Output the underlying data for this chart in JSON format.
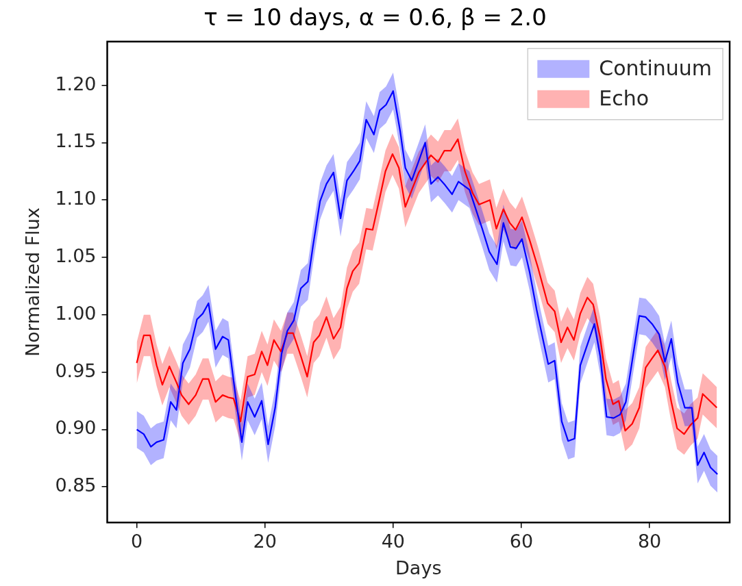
{
  "chart_data": {
    "type": "line",
    "title": "τ = 10 days, α = 0.6, β = 2.0",
    "xlabel": "Days",
    "ylabel": "Normalized Flux",
    "xlim": [
      -4.6,
      92.5
    ],
    "xticks": [
      0,
      20,
      40,
      60,
      80
    ],
    "ylim": [
      0.819,
      1.238
    ],
    "yticks": [
      0.85,
      {
        "value": 0.9,
        "label": "0.90"
      },
      0.95,
      {
        "value": 1.0,
        "label": "1.00"
      },
      1.05,
      {
        "value": 1.1,
        "label": "1.10"
      },
      1.15,
      {
        "value": 1.2,
        "label": "1.20"
      }
    ],
    "grid": false,
    "legend": "top right",
    "marker": "none",
    "line_style": "solid",
    "series": [
      {
        "name": "Continuum",
        "color": "#0000ff",
        "x": [
          0,
          1.1,
          2.2,
          3.1,
          4.2,
          5.3,
          6.2,
          7.2,
          8.3,
          9.4,
          10.3,
          11.2,
          12.3,
          13.4,
          14.3,
          15.4,
          16.4,
          17.3,
          18.4,
          19.5,
          20.5,
          21.6,
          22.6,
          23.5,
          24.5,
          25.6,
          26.7,
          27.5,
          28.6,
          29.6,
          30.7,
          31.8,
          32.8,
          33.8,
          34.8,
          35.8,
          37.0,
          37.9,
          38.9,
          40.0,
          41.1,
          41.9,
          42.9,
          44.0,
          45.0,
          45.9,
          47.0,
          48.1,
          49.2,
          50.2,
          51.9,
          53.9,
          55.0,
          56.2,
          57.2,
          58.3,
          59.2,
          60.1,
          61.3,
          62.4,
          64.2,
          65.2,
          66.3,
          67.3,
          68.3,
          69.2,
          70.3,
          71.4,
          72.3,
          73.3,
          74.4,
          75.4,
          76.3,
          77.3,
          78.4,
          79.4,
          80.4,
          81.5,
          82.4,
          83.4,
          84.4,
          85.5,
          86.6,
          87.5,
          88.5,
          89.5,
          90.6
        ],
        "values": [
          0.9,
          0.896,
          0.885,
          0.889,
          0.891,
          0.924,
          0.917,
          0.958,
          0.97,
          0.996,
          1.001,
          1.01,
          0.97,
          0.981,
          0.978,
          0.93,
          0.889,
          0.924,
          0.911,
          0.925,
          0.887,
          0.919,
          0.966,
          0.986,
          0.995,
          1.023,
          1.029,
          1.06,
          1.099,
          1.114,
          1.124,
          1.084,
          1.117,
          1.125,
          1.134,
          1.17,
          1.157,
          1.178,
          1.183,
          1.195,
          1.16,
          1.128,
          1.117,
          1.134,
          1.15,
          1.114,
          1.12,
          1.113,
          1.105,
          1.116,
          1.109,
          1.075,
          1.055,
          1.044,
          1.08,
          1.059,
          1.058,
          1.066,
          1.037,
          1.004,
          0.957,
          0.96,
          0.907,
          0.89,
          0.892,
          0.956,
          0.974,
          0.992,
          0.964,
          0.911,
          0.91,
          0.913,
          0.924,
          0.96,
          0.999,
          0.998,
          0.992,
          0.983,
          0.959,
          0.979,
          0.941,
          0.919,
          0.919,
          0.869,
          0.88,
          0.867,
          0.861
        ],
        "lower": [
          0.884,
          0.88,
          0.869,
          0.873,
          0.875,
          0.908,
          0.901,
          0.942,
          0.954,
          0.98,
          0.985,
          0.994,
          0.954,
          0.965,
          0.962,
          0.914,
          0.873,
          0.908,
          0.895,
          0.909,
          0.871,
          0.903,
          0.95,
          0.97,
          0.979,
          1.007,
          1.013,
          1.044,
          1.083,
          1.098,
          1.108,
          1.068,
          1.101,
          1.109,
          1.118,
          1.154,
          1.141,
          1.162,
          1.167,
          1.179,
          1.144,
          1.112,
          1.101,
          1.118,
          1.134,
          1.098,
          1.104,
          1.097,
          1.089,
          1.1,
          1.093,
          1.059,
          1.039,
          1.028,
          1.064,
          1.043,
          1.042,
          1.05,
          1.021,
          0.988,
          0.941,
          0.944,
          0.891,
          0.874,
          0.876,
          0.94,
          0.958,
          0.976,
          0.948,
          0.895,
          0.894,
          0.897,
          0.908,
          0.944,
          0.983,
          0.982,
          0.976,
          0.967,
          0.943,
          0.963,
          0.925,
          0.903,
          0.903,
          0.853,
          0.864,
          0.851,
          0.845
        ],
        "upper": [
          0.916,
          0.912,
          0.901,
          0.905,
          0.907,
          0.94,
          0.933,
          0.974,
          0.986,
          1.012,
          1.017,
          1.026,
          0.986,
          0.997,
          0.994,
          0.946,
          0.905,
          0.94,
          0.927,
          0.941,
          0.903,
          0.935,
          0.982,
          1.002,
          1.011,
          1.039,
          1.045,
          1.076,
          1.115,
          1.13,
          1.14,
          1.1,
          1.133,
          1.141,
          1.15,
          1.186,
          1.173,
          1.194,
          1.199,
          1.211,
          1.176,
          1.144,
          1.133,
          1.15,
          1.166,
          1.13,
          1.136,
          1.129,
          1.121,
          1.132,
          1.125,
          1.091,
          1.071,
          1.06,
          1.096,
          1.075,
          1.074,
          1.082,
          1.053,
          1.02,
          0.973,
          0.976,
          0.923,
          0.906,
          0.908,
          0.972,
          0.99,
          1.008,
          0.98,
          0.927,
          0.926,
          0.929,
          0.94,
          0.976,
          1.015,
          1.014,
          1.008,
          0.999,
          0.975,
          0.995,
          0.957,
          0.935,
          0.935,
          0.885,
          0.896,
          0.883,
          0.877
        ]
      },
      {
        "name": "Echo",
        "color": "#ff0000",
        "x": [
          0,
          1.1,
          2.1,
          3.1,
          4.0,
          5.1,
          6.2,
          7.0,
          8.1,
          9.2,
          10.3,
          11.2,
          12.3,
          13.4,
          14.3,
          15.1,
          16.2,
          17.3,
          18.4,
          19.5,
          20.4,
          21.4,
          22.5,
          23.5,
          24.4,
          25.6,
          26.6,
          27.6,
          28.5,
          29.6,
          30.7,
          31.8,
          32.8,
          33.7,
          34.7,
          35.8,
          36.8,
          37.8,
          38.8,
          39.9,
          40.9,
          41.9,
          43.0,
          44.0,
          45.1,
          45.9,
          47.0,
          48.0,
          49.0,
          50.1,
          51.2,
          52.4,
          53.4,
          55.1,
          56.1,
          57.2,
          58.2,
          59.1,
          60.1,
          61.3,
          62.6,
          64.1,
          65.2,
          66.2,
          67.2,
          68.2,
          69.2,
          70.3,
          71.2,
          72.3,
          73.2,
          74.3,
          75.2,
          76.2,
          77.3,
          78.4,
          79.4,
          80.4,
          81.3,
          82.4,
          83.4,
          84.3,
          85.4,
          86.4,
          87.5,
          88.3,
          89.4,
          90.5
        ],
        "values": [
          0.958,
          0.982,
          0.982,
          0.956,
          0.939,
          0.955,
          0.941,
          0.93,
          0.922,
          0.93,
          0.944,
          0.944,
          0.924,
          0.93,
          0.928,
          0.927,
          0.907,
          0.946,
          0.948,
          0.968,
          0.956,
          0.978,
          0.968,
          0.984,
          0.984,
          0.964,
          0.946,
          0.976,
          0.982,
          0.998,
          0.979,
          0.989,
          1.023,
          1.038,
          1.045,
          1.075,
          1.074,
          1.099,
          1.125,
          1.14,
          1.128,
          1.094,
          1.11,
          1.124,
          1.133,
          1.139,
          1.133,
          1.143,
          1.143,
          1.153,
          1.125,
          1.106,
          1.096,
          1.1,
          1.075,
          1.092,
          1.08,
          1.074,
          1.085,
          1.065,
          1.041,
          1.01,
          1.003,
          0.976,
          0.989,
          0.978,
          1.001,
          1.015,
          1.009,
          0.98,
          0.944,
          0.922,
          0.925,
          0.899,
          0.905,
          0.919,
          0.954,
          0.962,
          0.969,
          0.955,
          0.924,
          0.901,
          0.896,
          0.904,
          0.91,
          0.931,
          0.925,
          0.919
        ],
        "lower": [
          0.94,
          0.964,
          0.964,
          0.938,
          0.921,
          0.937,
          0.923,
          0.912,
          0.904,
          0.912,
          0.926,
          0.926,
          0.906,
          0.912,
          0.91,
          0.909,
          0.889,
          0.928,
          0.93,
          0.95,
          0.938,
          0.96,
          0.95,
          0.966,
          0.966,
          0.946,
          0.928,
          0.958,
          0.964,
          0.98,
          0.961,
          0.971,
          1.005,
          1.02,
          1.027,
          1.057,
          1.056,
          1.081,
          1.107,
          1.122,
          1.11,
          1.076,
          1.092,
          1.106,
          1.115,
          1.121,
          1.115,
          1.125,
          1.125,
          1.135,
          1.107,
          1.088,
          1.078,
          1.082,
          1.057,
          1.074,
          1.062,
          1.056,
          1.067,
          1.047,
          1.023,
          0.992,
          0.985,
          0.958,
          0.971,
          0.96,
          0.983,
          0.997,
          0.991,
          0.962,
          0.926,
          0.904,
          0.907,
          0.881,
          0.887,
          0.901,
          0.936,
          0.944,
          0.951,
          0.937,
          0.906,
          0.883,
          0.878,
          0.886,
          0.892,
          0.913,
          0.907,
          0.901
        ],
        "upper": [
          0.976,
          1.0,
          1.0,
          0.974,
          0.957,
          0.973,
          0.959,
          0.948,
          0.94,
          0.948,
          0.962,
          0.962,
          0.942,
          0.948,
          0.946,
          0.945,
          0.925,
          0.964,
          0.966,
          0.986,
          0.974,
          0.996,
          0.986,
          1.002,
          1.002,
          0.982,
          0.964,
          0.994,
          1.0,
          1.016,
          0.997,
          1.007,
          1.041,
          1.056,
          1.063,
          1.093,
          1.092,
          1.117,
          1.143,
          1.158,
          1.146,
          1.112,
          1.128,
          1.142,
          1.151,
          1.157,
          1.151,
          1.161,
          1.161,
          1.171,
          1.143,
          1.124,
          1.114,
          1.118,
          1.093,
          1.11,
          1.098,
          1.092,
          1.103,
          1.083,
          1.059,
          1.028,
          1.021,
          0.994,
          1.007,
          0.996,
          1.019,
          1.033,
          1.027,
          0.998,
          0.962,
          0.94,
          0.943,
          0.917,
          0.923,
          0.937,
          0.972,
          0.98,
          0.987,
          0.973,
          0.942,
          0.919,
          0.914,
          0.922,
          0.928,
          0.949,
          0.943,
          0.937
        ]
      }
    ]
  }
}
